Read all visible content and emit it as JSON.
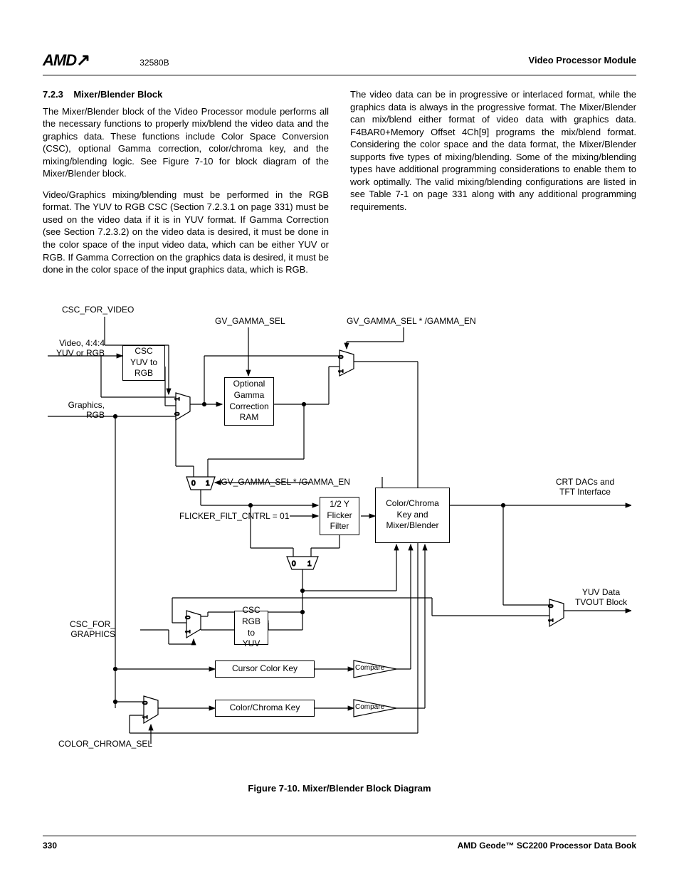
{
  "header": {
    "logo": "AMD",
    "docnum": "32580B",
    "module": "Video Processor Module"
  },
  "section": {
    "number": "7.2.3",
    "title": "Mixer/Blender Block",
    "para1": "The Mixer/Blender block of the Video Processor module performs all the necessary functions to properly mix/blend the video data and the graphics data. These functions include Color Space Conversion (CSC), optional Gamma correction, color/chroma key, and the mixing/blending logic. See Figure 7-10 for block diagram of the Mixer/Blender block.",
    "para2": "Video/Graphics mixing/blending must be performed in the RGB format. The YUV to RGB CSC (Section 7.2.3.1 on page 331) must be used on the video data if it is in YUV format. If Gamma Correction (see Section 7.2.3.2) on the video data is desired, it must be done in the color space of the input video data, which can be either YUV or RGB. If Gamma Correction on the graphics data is desired, it must be done in the color space of the input graphics data, which is RGB.",
    "para3": "The video data can be in progressive or interlaced format, while the graphics data is always in the progressive format. The Mixer/Blender can mix/blend either format of video data with graphics data. F4BAR0+Memory Offset 4Ch[9] programs the mix/blend format. Considering the color space and the data format, the Mixer/Blender supports five types of mixing/blending. Some of the mixing/blending types have additional programming considerations to enable them to work optimally. The valid mixing/blending configurations are listed in see Table 7-1 on page 331 along with any additional programming requirements."
  },
  "diagram": {
    "labels": {
      "csc_for_video": "CSC_FOR_VIDEO",
      "gv_gamma_sel": "GV_GAMMA_SEL",
      "gv_gamma_sel_en": "GV_GAMMA_SEL * /GAMMA_EN",
      "video_in": "Video, 4:4:4\nYUV or RGB",
      "graphics_in": "Graphics,\nRGB",
      "csc_yuv_rgb": "CSC\nYUV to\nRGB",
      "gamma_ram": "Optional\nGamma\nCorrection\nRAM",
      "gv_gamma_neg": "/GV_GAMMA_SEL * /GAMMA_EN",
      "flicker_ctrl": "FLICKER_FILT_CNTRL = 01",
      "flicker_filter": "1/2 Y\nFlicker\nFilter",
      "color_chroma_mixer": "Color/Chroma\nKey and\nMixer/Blender",
      "crt_out": "CRT DACs and\nTFT Interface",
      "yuv_out": "YUV Data\nTVOUT Block",
      "csc_rgb_yuv": "CSC\nRGB to\nYUV",
      "csc_for_graphics": "CSC_FOR_\nGRAPHICS",
      "cursor_key": "Cursor Color Key",
      "color_chroma_key": "Color/Chroma Key",
      "compare": "Compare",
      "color_chroma_sel": "COLOR_CHROMA_SEL"
    },
    "caption": "Figure 7-10.  Mixer/Blender Block Diagram"
  },
  "footer": {
    "page": "330",
    "booktitle": "AMD Geode™ SC2200  Processor Data Book"
  },
  "style": {
    "bg": "#ffffff",
    "text": "#000000",
    "rule": "#000000",
    "box_stroke": "#000000",
    "line_width": 1.2,
    "arrow_size": 6,
    "font_body_pt": 13,
    "font_label_pt": 12
  }
}
